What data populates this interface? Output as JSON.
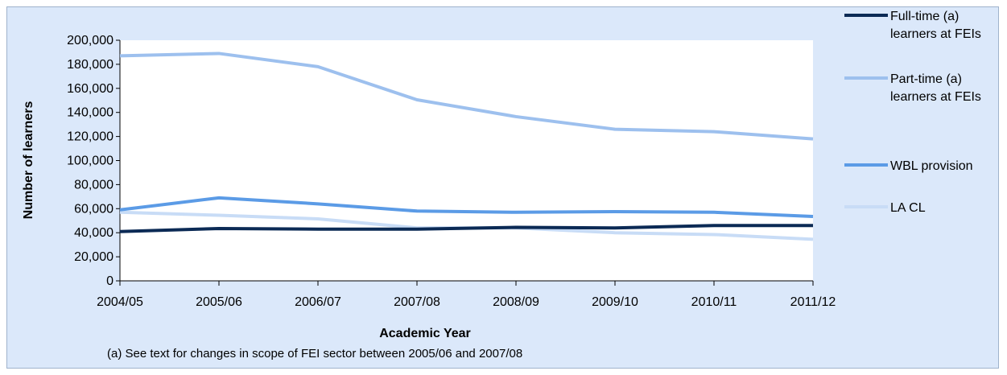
{
  "chart_data": {
    "type": "line",
    "xlabel": "Academic Year",
    "ylabel": "Number of learners",
    "categories": [
      "2004/05",
      "2005/06",
      "2006/07",
      "2007/08",
      "2008/09",
      "2009/10",
      "2010/11",
      "2011/12"
    ],
    "ylim": [
      0,
      200000
    ],
    "yticks": [
      0,
      20000,
      40000,
      60000,
      80000,
      100000,
      120000,
      140000,
      160000,
      180000,
      200000
    ],
    "ytick_labels": [
      "0",
      "20,000",
      "40,000",
      "60,000",
      "80,000",
      "100,000",
      "120,000",
      "140,000",
      "160,000",
      "180,000",
      "200,000"
    ],
    "grid": false,
    "legend_position": "right",
    "series": [
      {
        "name": "Full-time (a) learners at FEIs",
        "name_lines": [
          "Full-time (a)",
          "learners at FEIs"
        ],
        "color": "#0b2a55",
        "values": [
          41000,
          43500,
          43000,
          43000,
          44500,
          44000,
          46000,
          46000
        ]
      },
      {
        "name": "Part-time (a) learners at FEIs",
        "name_lines": [
          "Part-time (a)",
          "learners at FEIs"
        ],
        "color": "#9dc0ee",
        "values": [
          187000,
          189000,
          178000,
          150500,
          136500,
          126000,
          124000,
          118000
        ]
      },
      {
        "name": "WBL provision",
        "name_lines": [
          "WBL provision"
        ],
        "color": "#5b9be6",
        "values": [
          59000,
          69000,
          64000,
          58000,
          57000,
          57500,
          57000,
          53500
        ]
      },
      {
        "name": "LA CL",
        "name_lines": [
          "LA CL"
        ],
        "color": "#c8dcf6",
        "values": [
          57000,
          54500,
          51500,
          44000,
          44000,
          40000,
          38500,
          34500
        ]
      }
    ],
    "note": "(a) See text for changes in scope of FEI sector between 2005/06 and 2007/08"
  }
}
